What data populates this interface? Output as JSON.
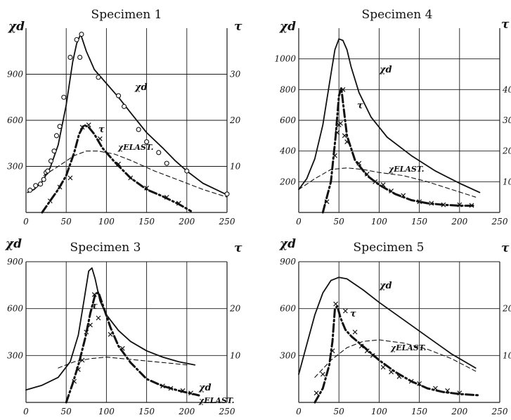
{
  "figure": {
    "tau_symbol": "τ"
  },
  "chart_data": [
    {
      "type": "line",
      "title": "Specimen 1",
      "ylabel": "χd",
      "y2label": "τ",
      "xlim": [
        0,
        250
      ],
      "ylim": [
        0,
        1200
      ],
      "y2lim": [
        0,
        40
      ],
      "xticks": [
        0,
        50,
        100,
        150,
        200,
        250
      ],
      "xtick_labels": [
        "0",
        "50",
        "100",
        "150",
        "200",
        "250"
      ],
      "yticks": [
        300,
        600,
        900
      ],
      "yticks_labels": [
        "300",
        "600",
        "900"
      ],
      "y2ticks": [
        10,
        20,
        30
      ],
      "y2tick_labels": [
        "10",
        "20",
        "30"
      ],
      "grid": true,
      "series": [
        {
          "name": "χd",
          "axis": "left",
          "style": "solid",
          "marker": "circle",
          "x": [
            2,
            10,
            20,
            30,
            40,
            50,
            58,
            63,
            68,
            75,
            85,
            100,
            115,
            130,
            150,
            170,
            185,
            200,
            220,
            240,
            250
          ],
          "y": [
            130,
            150,
            200,
            290,
            440,
            700,
            980,
            1100,
            1160,
            1050,
            930,
            840,
            750,
            650,
            520,
            420,
            340,
            270,
            190,
            140,
            115
          ],
          "points_x": [
            5,
            12,
            18,
            22,
            25,
            27,
            31,
            35,
            38,
            42,
            47,
            55,
            63,
            67,
            69,
            90,
            115,
            122,
            140,
            150,
            165,
            175,
            200,
            250
          ],
          "points_y": [
            145,
            175,
            185,
            215,
            260,
            270,
            335,
            400,
            500,
            560,
            750,
            1010,
            1125,
            1010,
            1160,
            880,
            760,
            690,
            540,
            460,
            390,
            320,
            270,
            120
          ]
        },
        {
          "name": "τ",
          "axis": "right",
          "style": "dash-dot",
          "marker": "x",
          "x": [
            20,
            30,
            40,
            50,
            60,
            66,
            72,
            78,
            85,
            95,
            110,
            130,
            150,
            170,
            190,
            205
          ],
          "y": [
            0,
            2.5,
            5,
            8,
            13,
            17,
            19,
            18.5,
            17,
            14,
            11,
            7.5,
            5,
            3.5,
            1.8,
            0.3
          ],
          "points_x": [
            30,
            42,
            55,
            70,
            78,
            92,
            115,
            130,
            150,
            175,
            190
          ],
          "points_y": [
            2.5,
            5.5,
            7.5,
            18.5,
            19,
            16,
            10.5,
            7.5,
            5.3,
            3.3,
            2
          ]
        },
        {
          "name": "χELAST.",
          "axis": "left",
          "style": "dashed",
          "marker": "none",
          "x": [
            22,
            40,
            60,
            75,
            90,
            110,
            130,
            160,
            190,
            220,
            250
          ],
          "y": [
            240,
            300,
            370,
            400,
            400,
            380,
            340,
            270,
            210,
            150,
            100
          ]
        }
      ],
      "annotations": [
        "χd",
        "τ",
        "χELAST."
      ]
    },
    {
      "type": "line",
      "title": "Specimen 4",
      "ylabel": "χd",
      "y2label": "τ",
      "xlim": [
        0,
        250
      ],
      "ylim": [
        0,
        1200
      ],
      "y2lim": [
        0,
        60
      ],
      "xticks": [
        0,
        50,
        100,
        150,
        200,
        250
      ],
      "xtick_labels": [
        "0",
        "50",
        "100",
        "150",
        "200",
        "250"
      ],
      "yticks": [
        200,
        400,
        600,
        800,
        1000
      ],
      "yticks_labels": [
        "200",
        "400",
        "600",
        "800",
        "1000"
      ],
      "y2ticks": [
        10,
        20,
        30,
        40
      ],
      "y2tick_labels": [
        "10",
        "20",
        "30",
        "40"
      ],
      "grid": true,
      "series": [
        {
          "name": "χd",
          "axis": "left",
          "style": "solid",
          "marker": "none",
          "x": [
            0,
            10,
            20,
            30,
            40,
            45,
            50,
            55,
            60,
            65,
            75,
            90,
            110,
            140,
            170,
            200,
            225
          ],
          "y": [
            150,
            220,
            350,
            570,
            900,
            1060,
            1130,
            1120,
            1060,
            950,
            780,
            620,
            490,
            370,
            270,
            190,
            130
          ],
          "points_x": [],
          "points_y": []
        },
        {
          "name": "τ",
          "axis": "right",
          "style": "dash-dot",
          "marker": "x",
          "x": [
            30,
            40,
            46,
            50,
            53,
            55,
            60,
            70,
            85,
            100,
            120,
            140,
            160,
            180,
            200,
            220
          ],
          "y": [
            0,
            10,
            25,
            38,
            40.5,
            36,
            25,
            17,
            12,
            9,
            6,
            4,
            3,
            2.5,
            2.2,
            2.2
          ],
          "points_x": [
            35,
            45,
            48,
            50,
            52,
            55,
            57,
            60,
            75,
            85,
            95,
            105,
            115,
            130,
            150,
            165,
            180,
            200,
            215
          ],
          "points_y": [
            3.5,
            18.5,
            26,
            28.5,
            29,
            40,
            25,
            23,
            16,
            12.5,
            10,
            9,
            7,
            5.5,
            3.5,
            3,
            2.5,
            2.5,
            2.3
          ]
        },
        {
          "name": "χELAST.",
          "axis": "left",
          "style": "dashed",
          "marker": "none",
          "x": [
            0,
            20,
            40,
            60,
            80,
            100,
            130,
            160,
            190,
            220
          ],
          "y": [
            150,
            220,
            280,
            290,
            280,
            260,
            240,
            200,
            150,
            100
          ]
        }
      ],
      "annotations": [
        "χd",
        "τ",
        "χELAST."
      ]
    },
    {
      "type": "line",
      "title": "Specimen 3",
      "ylabel": "χd",
      "y2label": "τ",
      "xlim": [
        0,
        250
      ],
      "ylim": [
        0,
        900
      ],
      "y2lim": [
        0,
        30
      ],
      "xticks": [
        0,
        50,
        100,
        150,
        200,
        250
      ],
      "xtick_labels": [
        "0",
        "50",
        "100",
        "150",
        "200",
        "250"
      ],
      "yticks": [
        300,
        600,
        900
      ],
      "yticks_labels": [
        "300",
        "600",
        "900"
      ],
      "y2ticks": [
        10,
        20
      ],
      "y2tick_labels": [
        "10",
        "20"
      ],
      "grid": true,
      "series": [
        {
          "name": "χd",
          "axis": "left",
          "style": "solid",
          "marker": "none",
          "x": [
            0,
            20,
            40,
            55,
            65,
            72,
            78,
            82,
            86,
            92,
            100,
            115,
            130,
            150,
            170,
            190,
            210
          ],
          "y": [
            80,
            110,
            160,
            260,
            430,
            650,
            840,
            860,
            790,
            650,
            560,
            460,
            390,
            330,
            290,
            260,
            240
          ],
          "points_x": [],
          "points_y": []
        },
        {
          "name": "τ",
          "axis": "right",
          "style": "dash-dot",
          "marker": "x",
          "x": [
            50,
            58,
            66,
            74,
            80,
            86,
            90,
            95,
            105,
            115,
            130,
            150,
            170,
            190,
            215
          ],
          "y": [
            0,
            4,
            8.5,
            14,
            19,
            23,
            23.5,
            21,
            16,
            12,
            8.5,
            5,
            3.5,
            2.5,
            1.5
          ],
          "points_x": [
            60,
            65,
            70,
            75,
            80,
            85,
            90,
            105,
            120,
            170,
            180,
            195,
            205
          ],
          "points_y": [
            4.5,
            7,
            9,
            15,
            16.5,
            23,
            18,
            14.5,
            11.5,
            3.5,
            3,
            2.5,
            2
          ]
        },
        {
          "name": "χELAST.",
          "axis": "left",
          "style": "dashed",
          "marker": "none",
          "x": [
            40,
            60,
            80,
            100,
            120,
            140,
            160,
            180,
            200
          ],
          "y": [
            220,
            260,
            280,
            290,
            280,
            270,
            260,
            250,
            240
          ]
        }
      ],
      "annotations": [
        "χd",
        "τ",
        "χELAST."
      ]
    },
    {
      "type": "line",
      "title": "Specimen 5",
      "ylabel": "χd",
      "y2label": "τ",
      "xlim": [
        0,
        250
      ],
      "ylim": [
        0,
        900
      ],
      "y2lim": [
        0,
        30
      ],
      "xticks": [
        0,
        50,
        100,
        150,
        200,
        250
      ],
      "xtick_labels": [
        "0",
        "50",
        "100",
        "150",
        "200",
        "250"
      ],
      "yticks": [
        300,
        600,
        900
      ],
      "yticks_labels": [
        "300",
        "600",
        "900"
      ],
      "y2ticks": [
        10,
        20
      ],
      "y2tick_labels": [
        "10",
        "20"
      ],
      "grid": true,
      "series": [
        {
          "name": "χd",
          "axis": "left",
          "style": "solid",
          "marker": "none",
          "x": [
            0,
            10,
            20,
            30,
            40,
            50,
            60,
            80,
            100,
            130,
            160,
            190,
            220
          ],
          "y": [
            180,
            370,
            560,
            700,
            780,
            800,
            790,
            720,
            640,
            530,
            420,
            310,
            220
          ],
          "points_x": [],
          "points_y": []
        },
        {
          "name": "τ",
          "axis": "right",
          "style": "dash-dot",
          "marker": "x",
          "x": [
            20,
            30,
            38,
            42,
            45,
            48,
            52,
            58,
            66,
            80,
            100,
            120,
            140,
            160,
            180,
            200,
            225
          ],
          "y": [
            0,
            3,
            8,
            13,
            20,
            20.5,
            18,
            15.5,
            14,
            12,
            9,
            6.5,
            4.5,
            3,
            2.2,
            1.8,
            1.5
          ],
          "points_x": [
            22,
            30,
            42,
            46,
            58,
            70,
            78,
            85,
            92,
            105,
            115,
            125,
            140,
            150,
            170,
            185,
            200
          ],
          "points_y": [
            2,
            6,
            11,
            21,
            19.5,
            15,
            12,
            11,
            10,
            7.5,
            6.5,
            5.5,
            4.5,
            4,
            3,
            2.5,
            2
          ]
        },
        {
          "name": "χELAST.",
          "axis": "left",
          "style": "dashed",
          "marker": "none",
          "x": [
            20,
            40,
            60,
            80,
            100,
            130,
            160,
            190,
            220
          ],
          "y": [
            160,
            270,
            350,
            390,
            400,
            380,
            340,
            280,
            200
          ]
        }
      ],
      "annotations": [
        "χd",
        "τ",
        "χELAST."
      ]
    }
  ]
}
